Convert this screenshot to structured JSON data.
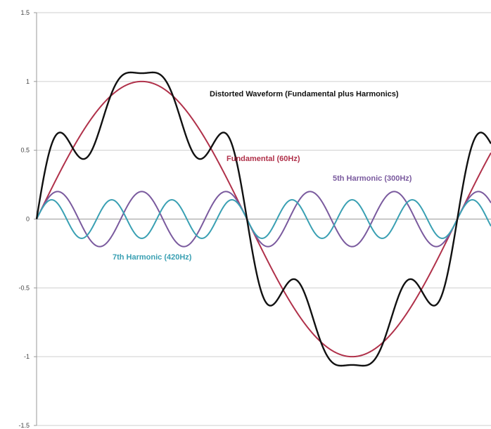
{
  "chart_data": {
    "type": "line",
    "title": "",
    "xlabel": "",
    "ylabel": "",
    "ylim": [
      -1.5,
      1.5
    ],
    "yticks": [
      {
        "value": 1.5,
        "label": "1.5"
      },
      {
        "value": 1,
        "label": "1"
      },
      {
        "value": 0.5,
        "label": "0.5"
      },
      {
        "value": 0,
        "label": "0"
      },
      {
        "value": -0.5,
        "label": "-0.5"
      },
      {
        "value": -1,
        "label": "-1"
      },
      {
        "value": -1.5,
        "label": "-1.5"
      }
    ],
    "grid": true,
    "legend": "none",
    "x_range_cycles": [
      0,
      1.08
    ],
    "series": [
      {
        "name": "Fundamental (60Hz)",
        "color": "#b0314a",
        "harmonic": 1,
        "amplitude": 1.0
      },
      {
        "name": "5th Harmonic (300Hz)",
        "color": "#7a5a9e",
        "harmonic": 5,
        "amplitude": 0.2
      },
      {
        "name": "7th Harmonic (420Hz)",
        "color": "#3aa0b3",
        "harmonic": 7,
        "amplitude": 0.14
      },
      {
        "name": "Distorted Waveform (Fundamental plus Harmonics)",
        "color": "#111111",
        "components": [
          1,
          5,
          7
        ]
      }
    ],
    "annotations": [
      {
        "text": "Distorted Waveform (Fundamental plus Harmonics)",
        "series": 3
      },
      {
        "text": "Fundamental (60Hz)",
        "series": 0
      },
      {
        "text": "5th Harmonic (300Hz)",
        "series": 1
      },
      {
        "text": "7th Harmonic (420Hz)",
        "series": 2
      }
    ]
  }
}
